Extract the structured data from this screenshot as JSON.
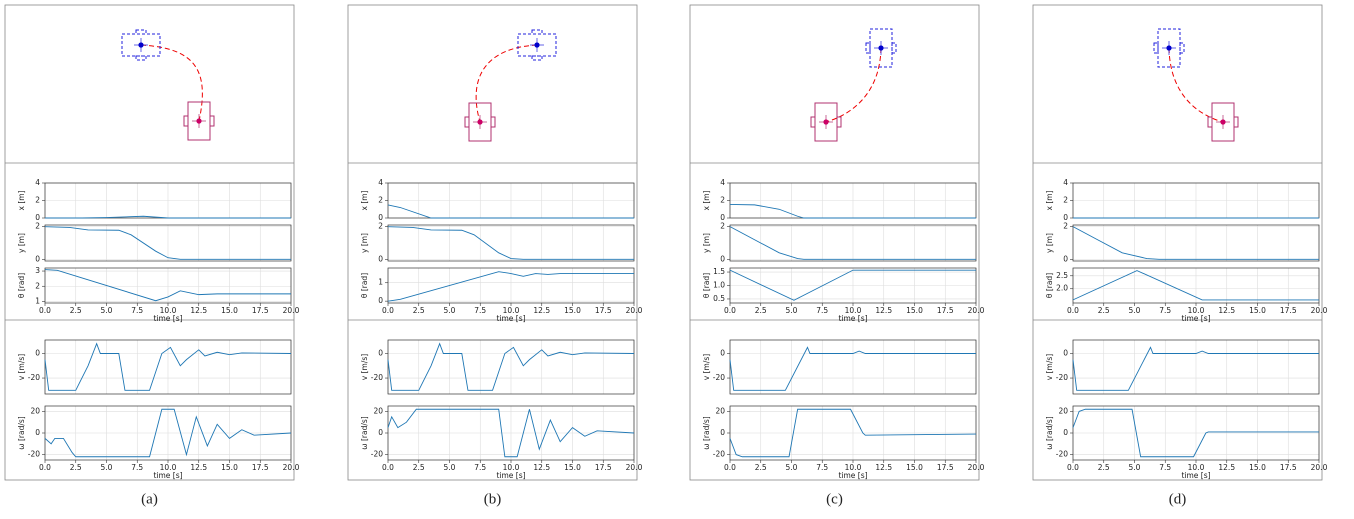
{
  "captions": [
    "(a)",
    "(b)",
    "(c)",
    "(d)"
  ],
  "chart_data": [
    {
      "type": "line",
      "ylabel": "x [m]",
      "x": [
        0,
        3,
        5,
        8,
        10,
        20
      ],
      "values": [
        0,
        0,
        0.05,
        0.2,
        0,
        0
      ],
      "color": "#1f77b4",
      "xlim": [
        0,
        20
      ],
      "ylim": [
        0,
        4
      ],
      "yticks": [
        0,
        2,
        4
      ],
      "xticks": [
        0,
        2.5,
        5,
        7.5,
        10,
        12.5,
        15,
        17.5,
        20
      ],
      "grid": true
    },
    {
      "type": "line",
      "ylabel": "y [m]",
      "x": [
        0,
        2,
        3.5,
        6,
        7,
        9,
        10,
        11,
        20
      ],
      "values": [
        2,
        1.95,
        1.8,
        1.78,
        1.5,
        0.5,
        0.1,
        0,
        0
      ],
      "color": "#1f77b4",
      "xlim": [
        0,
        20
      ],
      "ylim": [
        -0.1,
        2.1
      ],
      "yticks": [
        0,
        2
      ],
      "xticks": [
        0,
        2.5,
        5,
        7.5,
        10,
        12.5,
        15,
        17.5,
        20
      ],
      "grid": true
    },
    {
      "type": "line",
      "ylabel": "θ [rad]",
      "xlabel": "time [s]",
      "x": [
        0,
        1,
        9,
        10,
        11,
        12.5,
        14,
        20
      ],
      "values": [
        3.1,
        3.05,
        1.05,
        1.3,
        1.7,
        1.45,
        1.5,
        1.5
      ],
      "color": "#1f77b4",
      "xlim": [
        0,
        20
      ],
      "ylim": [
        0.9,
        3.2
      ],
      "yticks": [
        1,
        2,
        3
      ],
      "xticks": [
        {
          "value": 0,
          "label": "0.0"
        },
        {
          "value": 2.5,
          "label": "2.5"
        },
        {
          "value": 5,
          "label": "5.0"
        },
        {
          "value": 7.5,
          "label": "7.5"
        },
        {
          "value": 10,
          "label": "10.0"
        },
        {
          "value": 12.5,
          "label": "12.5"
        },
        {
          "value": 15,
          "label": "15.0"
        },
        {
          "value": 17.5,
          "label": "17.5"
        },
        {
          "value": 20,
          "label": "20.0"
        }
      ],
      "grid": true
    },
    {
      "type": "line",
      "ylabel": "v [m/s]",
      "x": [
        0,
        0.3,
        2.5,
        3.5,
        4.2,
        4.5,
        6,
        6.5,
        8.5,
        9.5,
        10.2,
        11,
        11.5,
        12.5,
        13,
        14,
        15,
        16,
        20
      ],
      "values": [
        -5,
        -30,
        -30,
        -10,
        8,
        0,
        0,
        -30,
        -30,
        0,
        5,
        -10,
        -5,
        3,
        -2,
        1,
        -1,
        0.5,
        0
      ],
      "color": "#1f77b4",
      "xlim": [
        0,
        20
      ],
      "ylim": [
        -33,
        11
      ],
      "yticks": [
        -20,
        0
      ],
      "xticks": [
        0,
        2.5,
        5,
        7.5,
        10,
        12.5,
        15,
        17.5,
        20
      ],
      "grid": true
    },
    {
      "type": "line",
      "ylabel": "ω [rad/s]",
      "xlabel": "time [s]",
      "x": [
        0,
        0.5,
        0.8,
        1.5,
        2.2,
        2.5,
        8.5,
        9.5,
        10.5,
        11.5,
        12.3,
        13.2,
        14,
        15,
        16,
        17,
        20
      ],
      "values": [
        -5,
        -10,
        -5,
        -5,
        -18,
        -22,
        -22,
        22,
        22,
        -20,
        15,
        -12,
        8,
        -5,
        3,
        -2,
        0
      ],
      "color": "#1f77b4",
      "xlim": [
        0,
        20
      ],
      "ylim": [
        -25,
        25
      ],
      "yticks": [
        -20,
        0,
        20
      ],
      "xticks": [
        {
          "value": 0,
          "label": "0.0"
        },
        {
          "value": 2.5,
          "label": "2.5"
        },
        {
          "value": 5,
          "label": "5.0"
        },
        {
          "value": 7.5,
          "label": "7.5"
        },
        {
          "value": 10,
          "label": "10.0"
        },
        {
          "value": 12.5,
          "label": "12.5"
        },
        {
          "value": 15,
          "label": "15.0"
        },
        {
          "value": 17.5,
          "label": "17.5"
        },
        {
          "value": 20,
          "label": "20.0"
        }
      ],
      "grid": true
    },
    {
      "type": "line",
      "ylabel": "x [m]",
      "x": [
        0,
        1,
        3.5,
        20
      ],
      "values": [
        1.5,
        1.2,
        0,
        0
      ],
      "color": "#1f77b4",
      "xlim": [
        0,
        20
      ],
      "ylim": [
        0,
        4
      ],
      "yticks": [
        0,
        2,
        4
      ],
      "xticks": [
        0,
        2.5,
        5,
        7.5,
        10,
        12.5,
        15,
        17.5,
        20
      ],
      "grid": true
    },
    {
      "type": "line",
      "ylabel": "y [m]",
      "x": [
        0,
        2,
        3.5,
        6,
        7,
        9,
        10,
        11,
        20
      ],
      "values": [
        2,
        1.95,
        1.8,
        1.78,
        1.5,
        0.4,
        0.05,
        0,
        0
      ],
      "color": "#1f77b4",
      "xlim": [
        0,
        20
      ],
      "ylim": [
        -0.1,
        2.1
      ],
      "yticks": [
        0,
        2
      ],
      "xticks": [
        0,
        2.5,
        5,
        7.5,
        10,
        12.5,
        15,
        17.5,
        20
      ],
      "grid": true
    },
    {
      "type": "line",
      "ylabel": "θ [rad]",
      "xlabel": "time [s]",
      "x": [
        0,
        1,
        9,
        10,
        11,
        12,
        13,
        14,
        20
      ],
      "values": [
        0,
        0.1,
        1.6,
        1.5,
        1.35,
        1.5,
        1.45,
        1.5,
        1.5
      ],
      "color": "#1f77b4",
      "xlim": [
        0,
        20
      ],
      "ylim": [
        -0.1,
        1.8
      ],
      "yticks": [
        0,
        1
      ],
      "xticks": [
        {
          "value": 0,
          "label": "0.0"
        },
        {
          "value": 2.5,
          "label": "2.5"
        },
        {
          "value": 5,
          "label": "5.0"
        },
        {
          "value": 7.5,
          "label": "7.5"
        },
        {
          "value": 10,
          "label": "10.0"
        },
        {
          "value": 12.5,
          "label": "12.5"
        },
        {
          "value": 15,
          "label": "15.0"
        },
        {
          "value": 17.5,
          "label": "17.5"
        },
        {
          "value": 20,
          "label": "20.0"
        }
      ],
      "grid": true
    },
    {
      "type": "line",
      "ylabel": "v [m/s]",
      "x": [
        0,
        0.3,
        2.5,
        3.5,
        4.2,
        4.5,
        6,
        6.5,
        8.5,
        9.5,
        10.2,
        11,
        11.5,
        12.5,
        13,
        14,
        15,
        16,
        20
      ],
      "values": [
        -5,
        -30,
        -30,
        -10,
        8,
        0,
        0,
        -30,
        -30,
        0,
        5,
        -10,
        -5,
        3,
        -2,
        1,
        -1,
        0.5,
        0
      ],
      "color": "#1f77b4",
      "xlim": [
        0,
        20
      ],
      "ylim": [
        -33,
        11
      ],
      "yticks": [
        -20,
        0
      ],
      "xticks": [
        0,
        2.5,
        5,
        7.5,
        10,
        12.5,
        15,
        17.5,
        20
      ],
      "grid": true
    },
    {
      "type": "line",
      "ylabel": "ω [rad/s]",
      "xlabel": "time [s]",
      "x": [
        0,
        0.3,
        0.8,
        1.5,
        2.3,
        9,
        9.5,
        10.5,
        11.5,
        12.3,
        13.2,
        14,
        15,
        16,
        17,
        20
      ],
      "values": [
        5,
        15,
        5,
        10,
        22,
        22,
        -22,
        -22,
        22,
        -15,
        12,
        -8,
        5,
        -3,
        2,
        0
      ],
      "color": "#1f77b4",
      "xlim": [
        0,
        20
      ],
      "ylim": [
        -25,
        25
      ],
      "yticks": [
        -20,
        0,
        20
      ],
      "xticks": [
        {
          "value": 0,
          "label": "0.0"
        },
        {
          "value": 2.5,
          "label": "2.5"
        },
        {
          "value": 5,
          "label": "5.0"
        },
        {
          "value": 7.5,
          "label": "7.5"
        },
        {
          "value": 10,
          "label": "10.0"
        },
        {
          "value": 12.5,
          "label": "12.5"
        },
        {
          "value": 15,
          "label": "15.0"
        },
        {
          "value": 17.5,
          "label": "17.5"
        },
        {
          "value": 20,
          "label": "20.0"
        }
      ],
      "grid": true
    },
    {
      "type": "line",
      "ylabel": "x [m]",
      "x": [
        0,
        2,
        4,
        5.5,
        6,
        20
      ],
      "values": [
        1.55,
        1.5,
        1,
        0.2,
        0,
        0
      ],
      "color": "#1f77b4",
      "xlim": [
        0,
        20
      ],
      "ylim": [
        0,
        4
      ],
      "yticks": [
        0,
        2,
        4
      ],
      "xticks": [
        0,
        2.5,
        5,
        7.5,
        10,
        12.5,
        15,
        17.5,
        20
      ],
      "grid": true
    },
    {
      "type": "line",
      "ylabel": "y [m]",
      "x": [
        0,
        2,
        4,
        5.5,
        6,
        20
      ],
      "values": [
        2,
        1.2,
        0.4,
        0.05,
        0,
        0
      ],
      "color": "#1f77b4",
      "xlim": [
        0,
        20
      ],
      "ylim": [
        -0.1,
        2.1
      ],
      "yticks": [
        0,
        2
      ],
      "xticks": [
        0,
        2.5,
        5,
        7.5,
        10,
        12.5,
        15,
        17.5,
        20
      ],
      "grid": true
    },
    {
      "type": "line",
      "ylabel": "θ [rad]",
      "xlabel": "time [s]",
      "x": [
        0,
        5.2,
        10,
        20
      ],
      "values": [
        1.57,
        0.45,
        1.57,
        1.57
      ],
      "color": "#1f77b4",
      "xlim": [
        0,
        20
      ],
      "ylim": [
        0.35,
        1.65
      ],
      "yticks": [
        0.5,
        {
          "value": 1,
          "label": "1.0"
        },
        1.5
      ],
      "xticks": [
        {
          "value": 0,
          "label": "0.0"
        },
        {
          "value": 2.5,
          "label": "2.5"
        },
        {
          "value": 5,
          "label": "5.0"
        },
        {
          "value": 7.5,
          "label": "7.5"
        },
        {
          "value": 10,
          "label": "10.0"
        },
        {
          "value": 12.5,
          "label": "12.5"
        },
        {
          "value": 15,
          "label": "15.0"
        },
        {
          "value": 17.5,
          "label": "17.5"
        },
        {
          "value": 20,
          "label": "20.0"
        }
      ],
      "grid": true
    },
    {
      "type": "line",
      "ylabel": "v [m/s]",
      "x": [
        0,
        0.3,
        4.5,
        6.3,
        6.5,
        10,
        10.5,
        11,
        20
      ],
      "values": [
        -5,
        -30,
        -30,
        5,
        0,
        0,
        2,
        0,
        0
      ],
      "color": "#1f77b4",
      "xlim": [
        0,
        20
      ],
      "ylim": [
        -33,
        11
      ],
      "yticks": [
        -20,
        0
      ],
      "xticks": [
        0,
        2.5,
        5,
        7.5,
        10,
        12.5,
        15,
        17.5,
        20
      ],
      "grid": true
    },
    {
      "type": "line",
      "ylabel": "ω [rad/s]",
      "xlabel": "time [s]",
      "x": [
        0,
        0.5,
        1,
        4.8,
        5.5,
        9.8,
        10.8,
        11,
        20
      ],
      "values": [
        -5,
        -20,
        -22,
        -22,
        22,
        22,
        0,
        -2,
        -1
      ],
      "color": "#1f77b4",
      "xlim": [
        0,
        20
      ],
      "ylim": [
        -25,
        25
      ],
      "yticks": [
        -20,
        0,
        20
      ],
      "xticks": [
        {
          "value": 0,
          "label": "0.0"
        },
        {
          "value": 2.5,
          "label": "2.5"
        },
        {
          "value": 5,
          "label": "5.0"
        },
        {
          "value": 7.5,
          "label": "7.5"
        },
        {
          "value": 10,
          "label": "10.0"
        },
        {
          "value": 12.5,
          "label": "12.5"
        },
        {
          "value": 15,
          "label": "15.0"
        },
        {
          "value": 17.5,
          "label": "17.5"
        },
        {
          "value": 20,
          "label": "20.0"
        }
      ],
      "grid": true
    },
    {
      "type": "line",
      "ylabel": "x [m]",
      "x": [
        0,
        20
      ],
      "values": [
        0,
        0
      ],
      "color": "#1f77b4",
      "xlim": [
        0,
        20
      ],
      "ylim": [
        0,
        4
      ],
      "yticks": [
        0,
        2,
        4
      ],
      "xticks": [
        0,
        2.5,
        5,
        7.5,
        10,
        12.5,
        15,
        17.5,
        20
      ],
      "grid": true
    },
    {
      "type": "line",
      "ylabel": "y [m]",
      "x": [
        0,
        2,
        4,
        6,
        7,
        20
      ],
      "values": [
        2,
        1.2,
        0.4,
        0.05,
        0,
        0
      ],
      "color": "#1f77b4",
      "xlim": [
        0,
        20
      ],
      "ylim": [
        -0.1,
        2.1
      ],
      "yticks": [
        0,
        2
      ],
      "xticks": [
        0,
        2.5,
        5,
        7.5,
        10,
        12.5,
        15,
        17.5,
        20
      ],
      "grid": true
    },
    {
      "type": "line",
      "ylabel": "θ [rad]",
      "xlabel": "time [s]",
      "x": [
        0,
        5.2,
        10.5,
        20
      ],
      "values": [
        1.57,
        2.7,
        1.57,
        1.57
      ],
      "color": "#1f77b4",
      "xlim": [
        0,
        20
      ],
      "ylim": [
        1.45,
        2.8
      ],
      "yticks": [
        {
          "value": 2,
          "label": "2.0"
        },
        2.5
      ],
      "xticks": [
        {
          "value": 0,
          "label": "0.0"
        },
        {
          "value": 2.5,
          "label": "2.5"
        },
        {
          "value": 5,
          "label": "5.0"
        },
        {
          "value": 7.5,
          "label": "7.5"
        },
        {
          "value": 10,
          "label": "10.0"
        },
        {
          "value": 12.5,
          "label": "12.5"
        },
        {
          "value": 15,
          "label": "15.0"
        },
        {
          "value": 17.5,
          "label": "17.5"
        },
        {
          "value": 20,
          "label": "20.0"
        }
      ],
      "grid": true
    },
    {
      "type": "line",
      "ylabel": "v [m/s]",
      "x": [
        0,
        0.3,
        4.5,
        6.3,
        6.5,
        10,
        10.5,
        11,
        20
      ],
      "values": [
        -5,
        -30,
        -30,
        5,
        0,
        0,
        2,
        0,
        0
      ],
      "color": "#1f77b4",
      "xlim": [
        0,
        20
      ],
      "ylim": [
        -33,
        11
      ],
      "yticks": [
        -20,
        0
      ],
      "xticks": [
        0,
        2.5,
        5,
        7.5,
        10,
        12.5,
        15,
        17.5,
        20
      ],
      "grid": true
    },
    {
      "type": "line",
      "ylabel": "ω [rad/s]",
      "xlabel": "time [s]",
      "x": [
        0,
        0.5,
        1,
        4.8,
        5.5,
        9.8,
        10.8,
        11,
        20
      ],
      "values": [
        5,
        20,
        22,
        22,
        -22,
        -22,
        0,
        1,
        1
      ],
      "color": "#1f77b4",
      "xlim": [
        0,
        20
      ],
      "ylim": [
        -25,
        25
      ],
      "yticks": [
        -20,
        0,
        20
      ],
      "xticks": [
        {
          "value": 0,
          "label": "0.0"
        },
        {
          "value": 2.5,
          "label": "2.5"
        },
        {
          "value": 5,
          "label": "5.0"
        },
        {
          "value": 7.5,
          "label": "7.5"
        },
        {
          "value": 10,
          "label": "10.0"
        },
        {
          "value": 12.5,
          "label": "12.5"
        },
        {
          "value": 15,
          "label": "15.0"
        },
        {
          "value": 17.5,
          "label": "17.5"
        },
        {
          "value": 20,
          "label": "20.0"
        }
      ],
      "grid": true
    }
  ]
}
